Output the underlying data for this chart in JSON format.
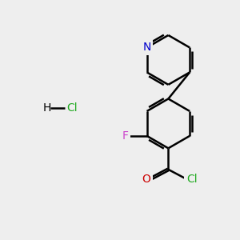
{
  "background_color": "#eeeeee",
  "atoms": {
    "N": {
      "color": "#0000cc"
    },
    "F": {
      "color": "#cc44cc"
    },
    "O": {
      "color": "#cc0000"
    },
    "Cl_green": {
      "color": "#22aa22"
    },
    "Cl_hcl": {
      "color": "#22aa22"
    },
    "H": {
      "color": "#000000"
    }
  },
  "bond_color": "#000000",
  "bond_width": 1.8,
  "dbo": 0.13
}
